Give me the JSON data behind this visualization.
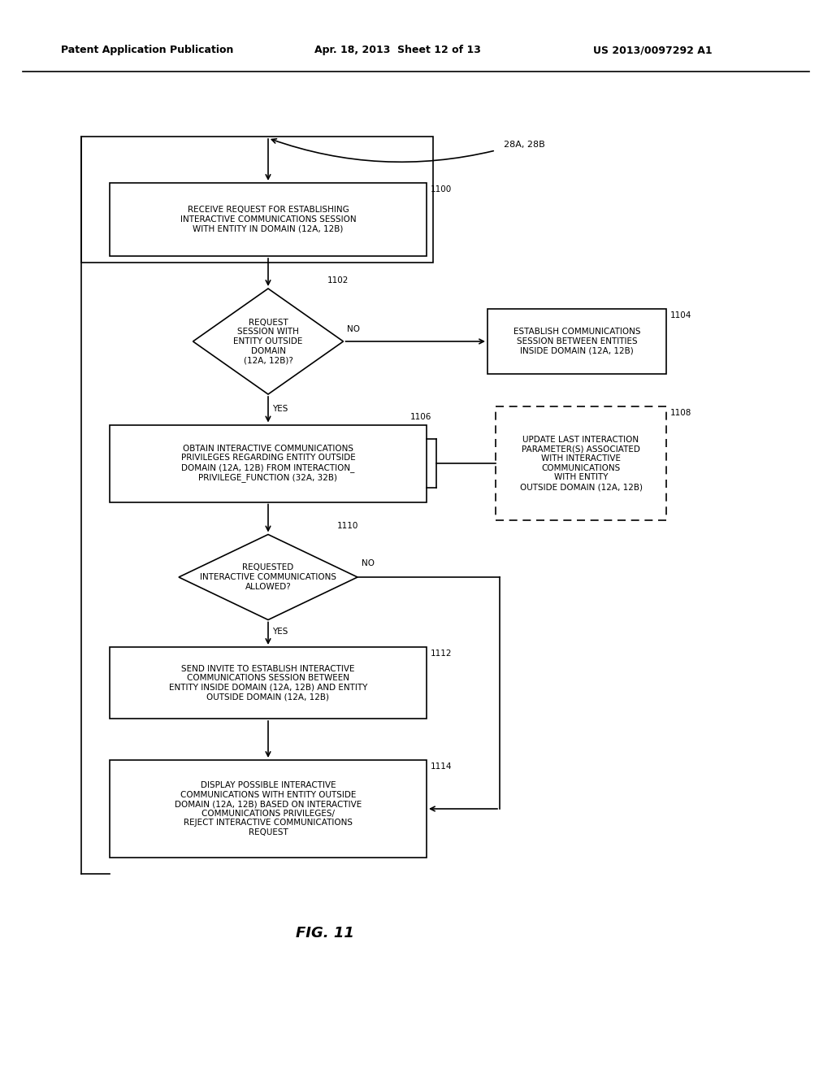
{
  "header_left": "Patent Application Publication",
  "header_center": "Apr. 18, 2013  Sheet 12 of 13",
  "header_right": "US 2013/0097292 A1",
  "fig_label": "FIG. 11",
  "bg_color": "#ffffff",
  "lbl_28AB": "28A, 28B",
  "lbl_1100": "1100",
  "lbl_1102": "1102",
  "lbl_1104": "1104",
  "lbl_1106": "1106",
  "lbl_1108": "1108",
  "lbl_1110": "1110",
  "lbl_1112": "1112",
  "lbl_1114": "1114",
  "txt_1100": "RECEIVE REQUEST FOR ESTABLISHING\nINTERACTIVE COMMUNICATIONS SESSION\nWITH ENTITY IN DOMAIN (12A, 12B)",
  "txt_1102": "REQUEST\nSESSION WITH\nENTITY OUTSIDE\nDOMAIN\n(12A, 12B)?",
  "txt_1104": "ESTABLISH COMMUNICATIONS\nSESSION BETWEEN ENTITIES\nINSIDE DOMAIN (12A, 12B)",
  "txt_1106": "OBTAIN INTERACTIVE COMMUNICATIONS\nPRIVILEGES REGARDING ENTITY OUTSIDE\nDOMAIN (12A, 12B) FROM INTERACTION_\nPRIVILEGE_FUNCTION (32A, 32B)",
  "txt_1108": "UPDATE LAST INTERACTION\nPARAMETER(S) ASSOCIATED\nWITH INTERACTIVE\nCOMMUNICATIONS\nWITH ENTITY\nOUTSIDE DOMAIN (12A, 12B)",
  "txt_1110": "REQUESTED\nINTERACTIVE COMMUNICATIONS\nALLOWED?",
  "txt_1112": "SEND INVITE TO ESTABLISH INTERACTIVE\nCOMMUNICATIONS SESSION BETWEEN\nENTITY INSIDE DOMAIN (12A, 12B) AND ENTITY\nOUTSIDE DOMAIN (12A, 12B)",
  "txt_1114": "DISPLAY POSSIBLE INTERACTIVE\nCOMMUNICATIONS WITH ENTITY OUTSIDE\nDOMAIN (12A, 12B) BASED ON INTERACTIVE\nCOMMUNICATIONS PRIVILEGES/\nREJECT INTERACTIVE COMMUNICATIONS\nREQUEST"
}
